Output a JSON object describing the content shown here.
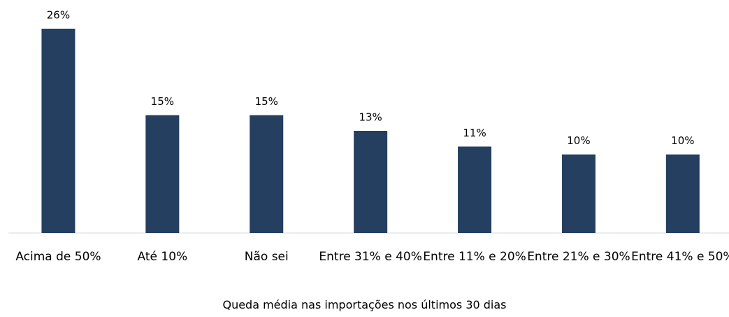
{
  "chart_data": {
    "type": "bar",
    "x_label": "Queda média nas importações nos últimos 30 dias",
    "categories": [
      "Acima de 50%",
      "Até 10%",
      "Não sei",
      "Entre 31% e 40%",
      "Entre 11% e 20%",
      "Entre 21% e 30%",
      "Entre 41% e 50%"
    ],
    "values": [
      26,
      15,
      15,
      13,
      11,
      10,
      10
    ],
    "value_labels": [
      "26%",
      "15%",
      "15%",
      "13%",
      "11%",
      "10%",
      "10%"
    ],
    "color": "#243f60"
  }
}
